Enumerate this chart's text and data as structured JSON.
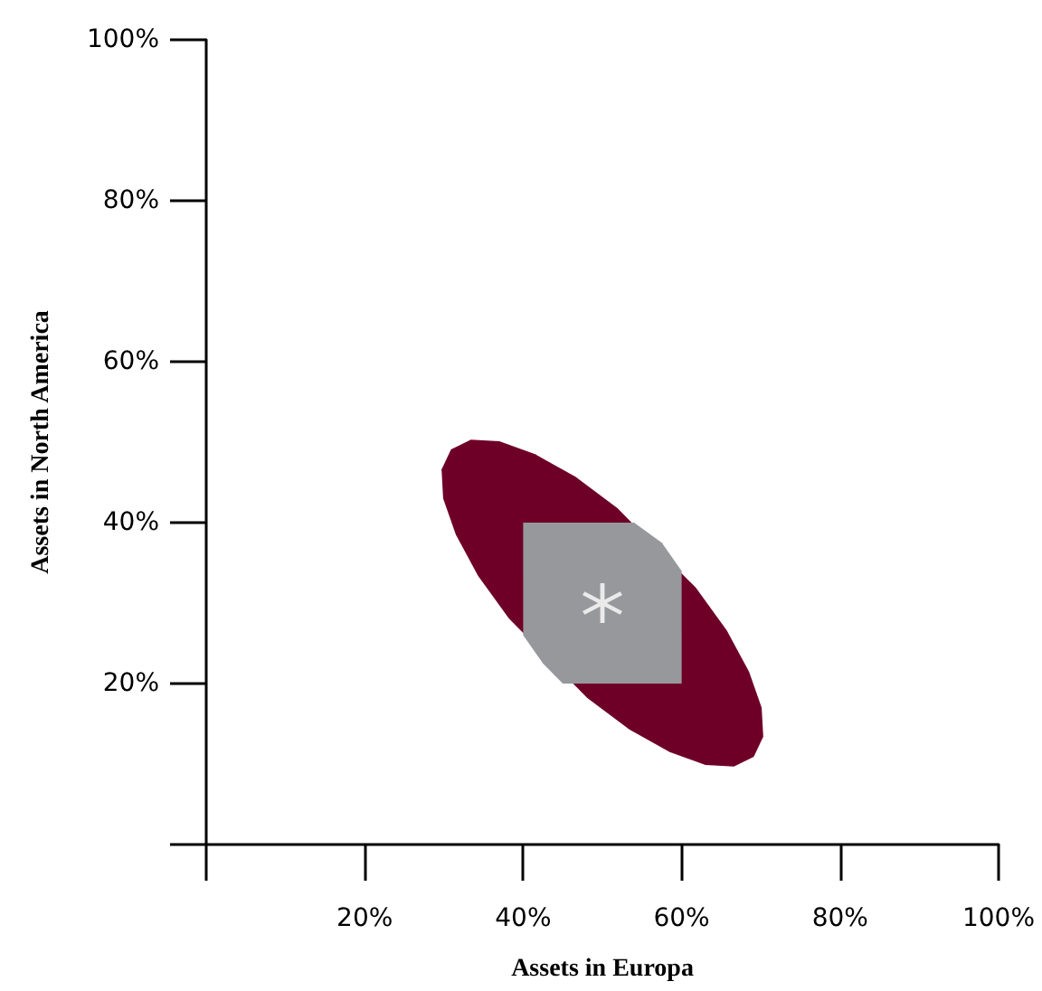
{
  "chart_data": {
    "type": "scatter",
    "xlabel": "Assets in Europa",
    "ylabel": "Assets in North America",
    "xlim": [
      0,
      100
    ],
    "ylim": [
      0,
      100
    ],
    "xticks": [
      {
        "value": 0,
        "label": null
      },
      {
        "value": 20,
        "label": "20%"
      },
      {
        "value": 40,
        "label": "40%"
      },
      {
        "value": 60,
        "label": "60%"
      },
      {
        "value": 80,
        "label": "80%"
      },
      {
        "value": 100,
        "label": "100%"
      }
    ],
    "yticks": [
      {
        "value": 0,
        "label": null
      },
      {
        "value": 20,
        "label": "20%"
      },
      {
        "value": 40,
        "label": "40%"
      },
      {
        "value": 60,
        "label": "60%"
      },
      {
        "value": 80,
        "label": "80%"
      },
      {
        "value": 100,
        "label": "100%"
      }
    ],
    "grid": false,
    "series": [
      {
        "type": "area",
        "color": "#6e0028",
        "x": [
          69.1,
          70.3,
          70.1,
          68.5,
          65.7,
          61.8,
          57.1,
          51.9,
          46.6,
          41.5,
          37.0,
          33.4,
          30.9,
          29.7,
          29.9,
          31.5,
          34.3,
          38.2,
          42.9,
          48.1,
          53.4,
          58.5,
          63.0,
          66.6
        ],
        "values": [
          10.9,
          13.4,
          17.0,
          21.5,
          26.6,
          31.9,
          null,
          41.8,
          45.7,
          48.5,
          50.1,
          50.3,
          49.1,
          46.6,
          43.0,
          38.5,
          33.4,
          28.1,
          null,
          18.2,
          14.3,
          11.5,
          9.9,
          9.7
        ]
      },
      {
        "type": "area",
        "color": "#97989c",
        "x": [
          40,
          54,
          57.5,
          60,
          60,
          45,
          42.5,
          40
        ],
        "values": [
          40,
          40,
          37.5,
          34,
          20,
          20,
          22.5,
          26
        ]
      },
      {
        "color": "#ffffff",
        "marker": "cross",
        "x": [
          50
        ],
        "values": [
          30
        ]
      }
    ]
  }
}
